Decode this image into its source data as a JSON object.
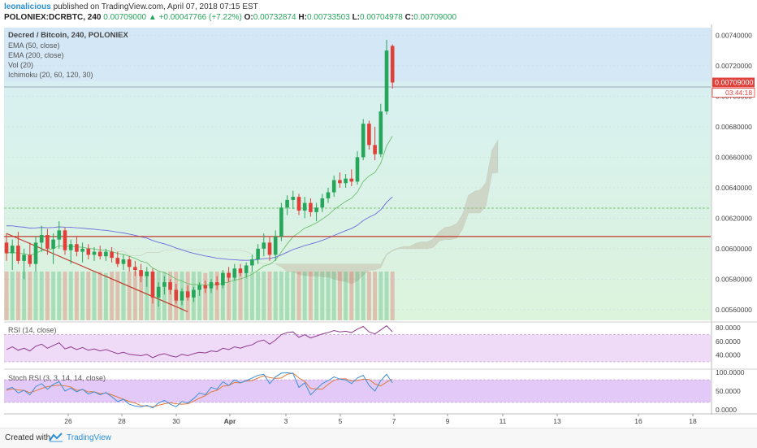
{
  "header": {
    "user": "leonalicious",
    "published_text": "published on TradingView.com, April 07, 2018 07:15 EST",
    "symbol": "POLONIEX:DCRBTC, 240",
    "price": "0.00709000",
    "change_arrow": "▲",
    "change": "+0.00047766 (+7.22%)",
    "ohlc": [
      {
        "label": "O:",
        "value": "0.00732874"
      },
      {
        "label": "H:",
        "value": "0.00733503"
      },
      {
        "label": "L:",
        "value": "0.00704978"
      },
      {
        "label": "C:",
        "value": "0.00709000"
      }
    ]
  },
  "legend": {
    "title": "Decred / Bitcoin, 240, POLONIEX",
    "items": [
      "EMA (50, close)",
      "EMA (200, close)",
      "Vol (20)",
      "Ichimoku (20, 60, 120, 30)"
    ]
  },
  "price_axis": {
    "ticks": [
      "0.00740000",
      "0.00720000",
      "0.00700000",
      "0.00680000",
      "0.00660000",
      "0.00640000",
      "0.00620000",
      "0.00600000",
      "0.00580000",
      "0.00560000"
    ],
    "current_price": "0.00709000",
    "countdown": "03:44:18"
  },
  "rsi": {
    "label": "RSI (14, close)",
    "ticks": [
      "80.0000",
      "60.0000",
      "40.0000"
    ]
  },
  "stoch": {
    "label": "Stoch RSI (3, 3, 14, 14, close)",
    "ticks": [
      "100.0000",
      "50.0000",
      "0.0000"
    ]
  },
  "time_axis": {
    "ticks": [
      "26",
      "28",
      "30",
      "Apr",
      "3",
      "5",
      "7",
      "9",
      "11",
      "13",
      "16",
      "18"
    ]
  },
  "footer": {
    "created_with": "Created with",
    "brand": "TradingView"
  },
  "colors": {
    "up": "#26a65b",
    "down": "#e0403a",
    "ema50": "#6fbf6f",
    "ema200": "#6a6adf",
    "horizontal_line": "#c0392b",
    "rsi_line": "#8e3a8e",
    "stoch_k": "#3b8fd8",
    "stoch_d": "#e07a3a"
  },
  "chart_data": {
    "type": "candlestick",
    "title": "Decred / Bitcoin, 240, POLONIEX",
    "ylim": [
      0.00553,
      0.00745
    ],
    "candles": [
      {
        "o": 0.00604,
        "h": 0.0061,
        "l": 0.00592,
        "c": 0.00597
      },
      {
        "o": 0.00597,
        "h": 0.00606,
        "l": 0.00586,
        "c": 0.00602
      },
      {
        "o": 0.00602,
        "h": 0.00611,
        "l": 0.0059,
        "c": 0.00592
      },
      {
        "o": 0.00592,
        "h": 0.006,
        "l": 0.0058,
        "c": 0.00596
      },
      {
        "o": 0.00596,
        "h": 0.00604,
        "l": 0.00588,
        "c": 0.0059
      },
      {
        "o": 0.0059,
        "h": 0.00608,
        "l": 0.00585,
        "c": 0.00604
      },
      {
        "o": 0.00604,
        "h": 0.00615,
        "l": 0.00598,
        "c": 0.00609
      },
      {
        "o": 0.00609,
        "h": 0.00613,
        "l": 0.00596,
        "c": 0.006
      },
      {
        "o": 0.006,
        "h": 0.0061,
        "l": 0.0059,
        "c": 0.00606
      },
      {
        "o": 0.00606,
        "h": 0.00618,
        "l": 0.006,
        "c": 0.00612
      },
      {
        "o": 0.00612,
        "h": 0.00614,
        "l": 0.00596,
        "c": 0.00599
      },
      {
        "o": 0.00599,
        "h": 0.00606,
        "l": 0.0059,
        "c": 0.00603
      },
      {
        "o": 0.00603,
        "h": 0.00608,
        "l": 0.00595,
        "c": 0.00598
      },
      {
        "o": 0.00598,
        "h": 0.00604,
        "l": 0.00591,
        "c": 0.006
      },
      {
        "o": 0.006,
        "h": 0.00603,
        "l": 0.00593,
        "c": 0.00596
      },
      {
        "o": 0.00596,
        "h": 0.00601,
        "l": 0.00592,
        "c": 0.00598
      },
      {
        "o": 0.00598,
        "h": 0.00602,
        "l": 0.00593,
        "c": 0.00595
      },
      {
        "o": 0.00595,
        "h": 0.006,
        "l": 0.00592,
        "c": 0.00598
      },
      {
        "o": 0.00598,
        "h": 0.00601,
        "l": 0.00591,
        "c": 0.00594
      },
      {
        "o": 0.00594,
        "h": 0.00598,
        "l": 0.00588,
        "c": 0.0059
      },
      {
        "o": 0.0059,
        "h": 0.00596,
        "l": 0.00586,
        "c": 0.00593
      },
      {
        "o": 0.00593,
        "h": 0.00595,
        "l": 0.00585,
        "c": 0.00588
      },
      {
        "o": 0.00588,
        "h": 0.00592,
        "l": 0.00582,
        "c": 0.00586
      },
      {
        "o": 0.00586,
        "h": 0.0059,
        "l": 0.00578,
        "c": 0.00582
      },
      {
        "o": 0.00582,
        "h": 0.00588,
        "l": 0.00575,
        "c": 0.00585
      },
      {
        "o": 0.00585,
        "h": 0.00587,
        "l": 0.00564,
        "c": 0.00568
      },
      {
        "o": 0.00568,
        "h": 0.00578,
        "l": 0.00562,
        "c": 0.00575
      },
      {
        "o": 0.00575,
        "h": 0.00582,
        "l": 0.0057,
        "c": 0.00578
      },
      {
        "o": 0.00578,
        "h": 0.0058,
        "l": 0.0057,
        "c": 0.00573
      },
      {
        "o": 0.00573,
        "h": 0.00577,
        "l": 0.00564,
        "c": 0.00566
      },
      {
        "o": 0.00566,
        "h": 0.00574,
        "l": 0.00563,
        "c": 0.00572
      },
      {
        "o": 0.00572,
        "h": 0.00576,
        "l": 0.00566,
        "c": 0.00568
      },
      {
        "o": 0.00568,
        "h": 0.00575,
        "l": 0.00565,
        "c": 0.00573
      },
      {
        "o": 0.00573,
        "h": 0.00578,
        "l": 0.00569,
        "c": 0.00576
      },
      {
        "o": 0.00576,
        "h": 0.00579,
        "l": 0.00571,
        "c": 0.00574
      },
      {
        "o": 0.00574,
        "h": 0.0058,
        "l": 0.00571,
        "c": 0.00578
      },
      {
        "o": 0.00578,
        "h": 0.00582,
        "l": 0.00573,
        "c": 0.00576
      },
      {
        "o": 0.00576,
        "h": 0.00586,
        "l": 0.00574,
        "c": 0.00584
      },
      {
        "o": 0.00584,
        "h": 0.00588,
        "l": 0.00578,
        "c": 0.00581
      },
      {
        "o": 0.00581,
        "h": 0.0059,
        "l": 0.00579,
        "c": 0.00587
      },
      {
        "o": 0.00587,
        "h": 0.0059,
        "l": 0.00582,
        "c": 0.00584
      },
      {
        "o": 0.00584,
        "h": 0.00591,
        "l": 0.00581,
        "c": 0.00589
      },
      {
        "o": 0.00589,
        "h": 0.00596,
        "l": 0.00585,
        "c": 0.00593
      },
      {
        "o": 0.00593,
        "h": 0.00603,
        "l": 0.0059,
        "c": 0.006
      },
      {
        "o": 0.006,
        "h": 0.0061,
        "l": 0.00595,
        "c": 0.00604
      },
      {
        "o": 0.00604,
        "h": 0.00608,
        "l": 0.00592,
        "c": 0.00596
      },
      {
        "o": 0.00596,
        "h": 0.00612,
        "l": 0.00592,
        "c": 0.00608
      },
      {
        "o": 0.00608,
        "h": 0.0063,
        "l": 0.00605,
        "c": 0.00627
      },
      {
        "o": 0.00627,
        "h": 0.00635,
        "l": 0.00622,
        "c": 0.00632
      },
      {
        "o": 0.00632,
        "h": 0.00638,
        "l": 0.00626,
        "c": 0.00634
      },
      {
        "o": 0.00634,
        "h": 0.00636,
        "l": 0.00622,
        "c": 0.00625
      },
      {
        "o": 0.00625,
        "h": 0.00634,
        "l": 0.0062,
        "c": 0.0063
      },
      {
        "o": 0.0063,
        "h": 0.00633,
        "l": 0.00621,
        "c": 0.00624
      },
      {
        "o": 0.00624,
        "h": 0.0063,
        "l": 0.00618,
        "c": 0.00627
      },
      {
        "o": 0.00627,
        "h": 0.00636,
        "l": 0.00624,
        "c": 0.00633
      },
      {
        "o": 0.00633,
        "h": 0.0064,
        "l": 0.0063,
        "c": 0.00637
      },
      {
        "o": 0.00637,
        "h": 0.00648,
        "l": 0.00634,
        "c": 0.00645
      },
      {
        "o": 0.00645,
        "h": 0.0065,
        "l": 0.0064,
        "c": 0.00643
      },
      {
        "o": 0.00643,
        "h": 0.00649,
        "l": 0.0064,
        "c": 0.00646
      },
      {
        "o": 0.00646,
        "h": 0.00652,
        "l": 0.00641,
        "c": 0.00644
      },
      {
        "o": 0.00644,
        "h": 0.00664,
        "l": 0.00642,
        "c": 0.0066
      },
      {
        "o": 0.0066,
        "h": 0.00685,
        "l": 0.00658,
        "c": 0.00682
      },
      {
        "o": 0.00682,
        "h": 0.00684,
        "l": 0.00665,
        "c": 0.00668
      },
      {
        "o": 0.00668,
        "h": 0.0068,
        "l": 0.00658,
        "c": 0.00662
      },
      {
        "o": 0.00662,
        "h": 0.00695,
        "l": 0.0066,
        "c": 0.0069
      },
      {
        "o": 0.0069,
        "h": 0.00737,
        "l": 0.00688,
        "c": 0.0073
      },
      {
        "o": 0.00733,
        "h": 0.00734,
        "l": 0.00705,
        "c": 0.00709
      }
    ],
    "horizontal_line": 0.00608,
    "rsi_range": [
      30,
      85
    ],
    "rsi": [
      48,
      52,
      47,
      50,
      46,
      53,
      56,
      50,
      54,
      58,
      49,
      52,
      48,
      51,
      47,
      49,
      46,
      48,
      45,
      42,
      44,
      41,
      40,
      39,
      41,
      36,
      40,
      42,
      39,
      37,
      41,
      39,
      42,
      44,
      43,
      46,
      45,
      50,
      48,
      52,
      50,
      53,
      55,
      60,
      62,
      56,
      62,
      70,
      73,
      74,
      66,
      70,
      65,
      68,
      71,
      73,
      76,
      74,
      75,
      73,
      78,
      82,
      74,
      71,
      77,
      83,
      74
    ],
    "stoch_range": [
      0,
      100
    ],
    "stoch_k": [
      55,
      60,
      45,
      52,
      40,
      62,
      70,
      55,
      68,
      75,
      50,
      58,
      48,
      55,
      42,
      48,
      40,
      46,
      35,
      22,
      28,
      15,
      10,
      8,
      12,
      5,
      18,
      25,
      15,
      8,
      22,
      18,
      30,
      45,
      40,
      60,
      55,
      75,
      65,
      80,
      72,
      78,
      85,
      92,
      95,
      70,
      88,
      98,
      99,
      97,
      60,
      72,
      40,
      55,
      70,
      78,
      88,
      82,
      80,
      70,
      85,
      92,
      65,
      50,
      78,
      95,
      72
    ],
    "stoch_d": [
      52,
      56,
      53,
      52,
      46,
      51,
      57,
      62,
      64,
      66,
      64,
      61,
      52,
      54,
      48,
      48,
      43,
      45,
      40,
      34,
      28,
      22,
      18,
      11,
      10,
      8,
      12,
      16,
      19,
      16,
      15,
      16,
      23,
      31,
      38,
      48,
      52,
      63,
      65,
      73,
      72,
      77,
      78,
      85,
      91,
      86,
      84,
      85,
      95,
      98,
      85,
      76,
      57,
      56,
      55,
      68,
      79,
      83,
      83,
      77,
      78,
      82,
      81,
      69,
      64,
      74,
      82
    ]
  }
}
